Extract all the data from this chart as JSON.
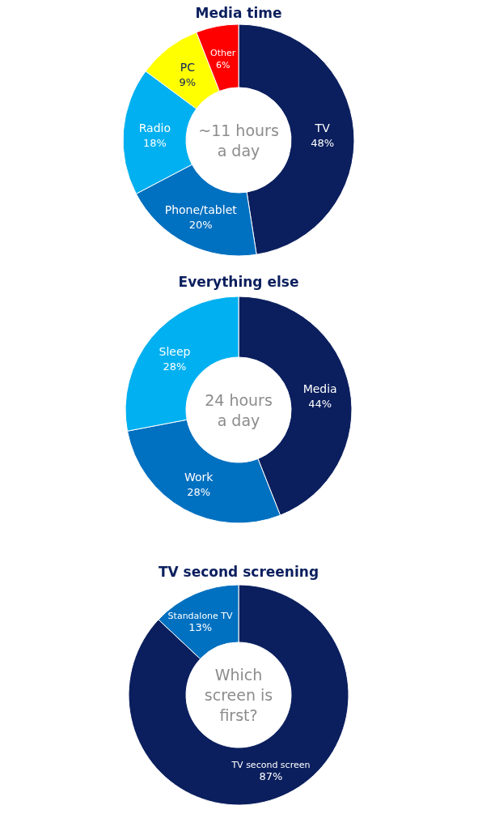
{
  "chart_data": [
    {
      "type": "donut",
      "title": "Media time",
      "categories": [
        "TV",
        "Phone/tablet",
        "Radio",
        "PC",
        "Other"
      ],
      "values": [
        48,
        20,
        18,
        9,
        6
      ],
      "value_labels": [
        "48%",
        "20%",
        "18%",
        "9%",
        "6%"
      ],
      "colors": [
        "#0b1f5e",
        "#0070c0",
        "#00b0f0",
        "#ffff00",
        "#ff0000"
      ],
      "annotations": [
        "~11 hours a day"
      ]
    },
    {
      "type": "donut",
      "title": "Everything else",
      "categories": [
        "Media",
        "Work",
        "Sleep"
      ],
      "values": [
        44,
        28,
        28
      ],
      "value_labels": [
        "44%",
        "28%",
        "28%"
      ],
      "colors": [
        "#0b1f5e",
        "#0070c0",
        "#00b0f0"
      ],
      "annotations": [
        "24 hours a day"
      ]
    },
    {
      "type": "donut",
      "title": "TV second screening",
      "categories": [
        "TV second screen",
        "Standalone TV"
      ],
      "values": [
        87,
        13
      ],
      "value_labels": [
        "87%",
        "13%"
      ],
      "colors": [
        "#0b1f5e",
        "#0070c0"
      ],
      "annotations": [
        "Which screen is first?"
      ]
    }
  ]
}
